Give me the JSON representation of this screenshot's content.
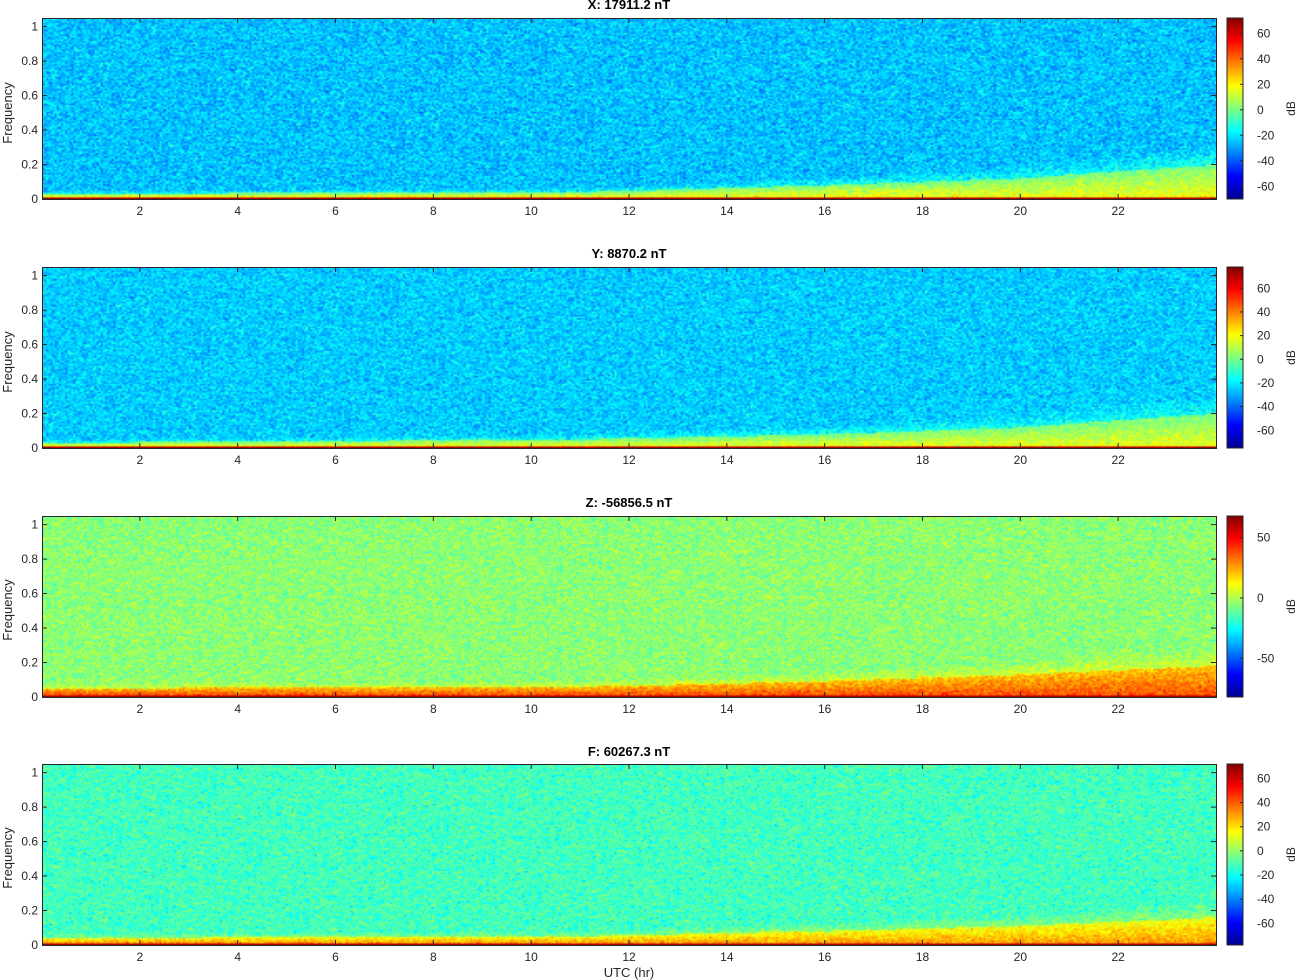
{
  "chart_data": [
    {
      "type": "heatmap",
      "title": "X: 17911.2 nT",
      "xlabel": "",
      "ylabel": "Frequency",
      "xlim": [
        0,
        24
      ],
      "ylim": [
        0,
        1.05
      ],
      "xticks": [
        "2",
        "4",
        "6",
        "8",
        "10",
        "12",
        "14",
        "16",
        "18",
        "20",
        "22"
      ],
      "yticks": [
        "0",
        "0.2",
        "0.4",
        "0.6",
        "0.8",
        "1"
      ],
      "colorbar": {
        "label": "dB",
        "range": [
          -70,
          72
        ],
        "ticks": [
          "60",
          "40",
          "20",
          "0",
          "-20",
          "-40",
          "-60"
        ],
        "values": [
          60,
          40,
          20,
          0,
          -20,
          -40,
          -60
        ]
      },
      "background_level_db": -25,
      "low_frequency_band": [
        {
          "utc_hr": 0,
          "top_freq": 0.03
        },
        {
          "utc_hr": 11,
          "top_freq": 0.04
        },
        {
          "utc_hr": 16,
          "top_freq": 0.08
        },
        {
          "utc_hr": 20,
          "top_freq": 0.12
        },
        {
          "utc_hr": 24,
          "top_freq": 0.2
        }
      ]
    },
    {
      "type": "heatmap",
      "title": "Y: 8870.2 nT",
      "xlabel": "",
      "ylabel": "Frequency",
      "xlim": [
        0,
        24
      ],
      "ylim": [
        0,
        1.05
      ],
      "xticks": [
        "2",
        "4",
        "6",
        "8",
        "10",
        "12",
        "14",
        "16",
        "18",
        "20",
        "22"
      ],
      "yticks": [
        "0",
        "0.2",
        "0.4",
        "0.6",
        "0.8",
        "1"
      ],
      "colorbar": {
        "label": "dB",
        "range": [
          -75,
          78
        ],
        "ticks": [
          "60",
          "40",
          "20",
          "0",
          "-20",
          "-40",
          "-60"
        ],
        "values": [
          60,
          40,
          20,
          0,
          -20,
          -40,
          -60
        ]
      },
      "background_level_db": -25,
      "low_frequency_band": [
        {
          "utc_hr": 0,
          "top_freq": 0.03
        },
        {
          "utc_hr": 11,
          "top_freq": 0.05
        },
        {
          "utc_hr": 16,
          "top_freq": 0.08
        },
        {
          "utc_hr": 20,
          "top_freq": 0.12
        },
        {
          "utc_hr": 24,
          "top_freq": 0.2
        }
      ]
    },
    {
      "type": "heatmap",
      "title": "Z: -56856.5 nT",
      "xlabel": "",
      "ylabel": "Frequency",
      "xlim": [
        0,
        24
      ],
      "ylim": [
        0,
        1.05
      ],
      "xticks": [
        "2",
        "4",
        "6",
        "8",
        "10",
        "12",
        "14",
        "16",
        "18",
        "20",
        "22"
      ],
      "yticks": [
        "0",
        "0.2",
        "0.4",
        "0.6",
        "0.8",
        "1"
      ],
      "colorbar": {
        "label": "dB",
        "range": [
          -82,
          68
        ],
        "ticks": [
          "50",
          "0",
          "-50"
        ],
        "values": [
          50,
          0,
          -50
        ]
      },
      "background_level_db": -5,
      "low_frequency_band": [
        {
          "utc_hr": 0,
          "top_freq": 0.05
        },
        {
          "utc_hr": 11,
          "top_freq": 0.06
        },
        {
          "utc_hr": 16,
          "top_freq": 0.09
        },
        {
          "utc_hr": 20,
          "top_freq": 0.13
        },
        {
          "utc_hr": 24,
          "top_freq": 0.18
        }
      ]
    },
    {
      "type": "heatmap",
      "title": "F: 60267.3 nT",
      "xlabel": "UTC (hr)",
      "ylabel": "Frequency",
      "xlim": [
        0,
        24
      ],
      "ylim": [
        0,
        1.05
      ],
      "xticks": [
        "2",
        "4",
        "6",
        "8",
        "10",
        "12",
        "14",
        "16",
        "18",
        "20",
        "22"
      ],
      "yticks": [
        "0",
        "0.2",
        "0.4",
        "0.6",
        "0.8",
        "1"
      ],
      "colorbar": {
        "label": "dB",
        "range": [
          -78,
          72
        ],
        "ticks": [
          "60",
          "40",
          "20",
          "0",
          "-20",
          "-40",
          "-60"
        ],
        "values": [
          60,
          40,
          20,
          0,
          -20,
          -40,
          -60
        ]
      },
      "background_level_db": -12,
      "low_frequency_band": [
        {
          "utc_hr": 0,
          "top_freq": 0.04
        },
        {
          "utc_hr": 11,
          "top_freq": 0.05
        },
        {
          "utc_hr": 16,
          "top_freq": 0.08
        },
        {
          "utc_hr": 20,
          "top_freq": 0.11
        },
        {
          "utc_hr": 24,
          "top_freq": 0.16
        }
      ]
    }
  ],
  "colormap": "jet",
  "colors": {
    "axis": "#262626",
    "jet_stops": [
      "#00008f",
      "#0000ff",
      "#00ffff",
      "#ffff00",
      "#ff0000",
      "#800000"
    ]
  }
}
